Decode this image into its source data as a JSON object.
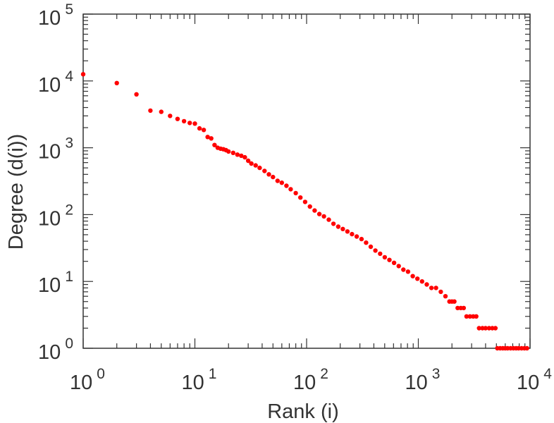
{
  "chart_data": {
    "type": "scatter",
    "title": "",
    "xlabel": "Rank (i)",
    "ylabel": "Degree (d(i))",
    "xscale": "log",
    "yscale": "log",
    "xlim": [
      1,
      10000
    ],
    "ylim": [
      1,
      100000
    ],
    "grid": false,
    "legend": "none",
    "marker_color": "#ff0000",
    "axis_color": "#333333",
    "x_ticks": [
      {
        "base": "10",
        "exp": "0"
      },
      {
        "base": "10",
        "exp": "1"
      },
      {
        "base": "10",
        "exp": "2"
      },
      {
        "base": "10",
        "exp": "3"
      },
      {
        "base": "10",
        "exp": "4"
      }
    ],
    "y_ticks": [
      {
        "base": "10",
        "exp": "0"
      },
      {
        "base": "10",
        "exp": "1"
      },
      {
        "base": "10",
        "exp": "2"
      },
      {
        "base": "10",
        "exp": "3"
      },
      {
        "base": "10",
        "exp": "4"
      },
      {
        "base": "10",
        "exp": "5"
      }
    ],
    "series": [
      {
        "points": [
          [
            1,
            12600
          ],
          [
            2,
            9300
          ],
          [
            3,
            6300
          ],
          [
            4,
            3600
          ],
          [
            5,
            3450
          ],
          [
            6,
            3000
          ],
          [
            7,
            2700
          ],
          [
            8,
            2500
          ],
          [
            9,
            2350
          ],
          [
            10,
            2300
          ],
          [
            11,
            1950
          ],
          [
            12,
            1850
          ],
          [
            13,
            1450
          ],
          [
            14,
            1380
          ],
          [
            15,
            1100
          ],
          [
            16,
            1000
          ],
          [
            17,
            970
          ],
          [
            18,
            950
          ],
          [
            19,
            920
          ],
          [
            20,
            880
          ],
          [
            22,
            840
          ],
          [
            24,
            790
          ],
          [
            26,
            760
          ],
          [
            28,
            720
          ],
          [
            30,
            640
          ],
          [
            32,
            580
          ],
          [
            35,
            545
          ],
          [
            38,
            500
          ],
          [
            42,
            450
          ],
          [
            46,
            400
          ],
          [
            50,
            365
          ],
          [
            55,
            320
          ],
          [
            60,
            300
          ],
          [
            66,
            270
          ],
          [
            72,
            240
          ],
          [
            80,
            210
          ],
          [
            88,
            180
          ],
          [
            97,
            155
          ],
          [
            107,
            132
          ],
          [
            118,
            115
          ],
          [
            130,
            102
          ],
          [
            143,
            94
          ],
          [
            158,
            84
          ],
          [
            174,
            73
          ],
          [
            192,
            66
          ],
          [
            211,
            61
          ],
          [
            232,
            56
          ],
          [
            255,
            51
          ],
          [
            281,
            47
          ],
          [
            310,
            43
          ],
          [
            341,
            38
          ],
          [
            375,
            33
          ],
          [
            413,
            29
          ],
          [
            455,
            26
          ],
          [
            501,
            23
          ],
          [
            551,
            21
          ],
          [
            607,
            19
          ],
          [
            668,
            17
          ],
          [
            735,
            15
          ],
          [
            809,
            14
          ],
          [
            891,
            12
          ],
          [
            981,
            11
          ],
          [
            1080,
            10
          ],
          [
            1190,
            9
          ],
          [
            1310,
            8
          ],
          [
            1440,
            8
          ],
          [
            1590,
            7
          ],
          [
            1750,
            6
          ],
          [
            1900,
            5
          ],
          [
            2000,
            5
          ],
          [
            2100,
            5
          ],
          [
            2250,
            4
          ],
          [
            2400,
            4
          ],
          [
            2550,
            4
          ],
          [
            2700,
            3
          ],
          [
            2900,
            3
          ],
          [
            3100,
            3
          ],
          [
            3300,
            3
          ],
          [
            3500,
            2
          ],
          [
            3750,
            2
          ],
          [
            4000,
            2
          ],
          [
            4300,
            2
          ],
          [
            4600,
            2
          ],
          [
            4900,
            2
          ],
          [
            5100,
            1
          ],
          [
            5400,
            1
          ],
          [
            5700,
            1
          ],
          [
            6000,
            1
          ],
          [
            6300,
            1
          ],
          [
            6700,
            1
          ],
          [
            7100,
            1
          ],
          [
            7500,
            1
          ],
          [
            7900,
            1
          ],
          [
            8400,
            1
          ],
          [
            8900,
            1
          ],
          [
            9400,
            1
          ]
        ]
      }
    ]
  }
}
